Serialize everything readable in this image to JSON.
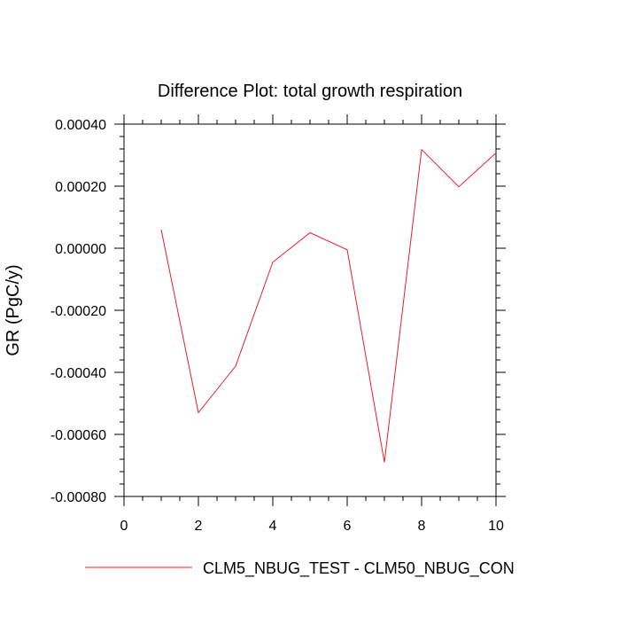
{
  "chart_data": {
    "type": "line",
    "title": "Difference Plot: total growth respiration",
    "xlabel": "",
    "ylabel": "GR  (PgC/y)",
    "xlim": [
      0,
      10
    ],
    "ylim": [
      -0.0008,
      0.0004
    ],
    "x_ticks": [
      0,
      2,
      4,
      6,
      8,
      10
    ],
    "x_tick_labels": [
      "0",
      "2",
      "4",
      "6",
      "8",
      "10"
    ],
    "y_ticks": [
      -0.0008,
      -0.0006,
      -0.0004,
      -0.0002,
      0.0,
      0.0002,
      0.0004
    ],
    "y_tick_labels": [
      "-0.00080",
      "-0.00060",
      "-0.00040",
      "-0.00020",
      "0.00000",
      "0.00020",
      "0.00040"
    ],
    "grid": false,
    "legend_position": "bottom",
    "series": [
      {
        "name": "CLM5_NBUG_TEST - CLM50_NBUG_CON",
        "color": "#e8202a",
        "x": [
          1,
          2,
          3,
          4,
          5,
          6,
          7,
          8,
          9,
          10
        ],
        "y": [
          6e-05,
          -0.00053,
          -0.00038,
          -4.5e-05,
          5e-05,
          -5e-06,
          -0.00069,
          0.000318,
          0.000198,
          0.000307
        ]
      }
    ]
  }
}
